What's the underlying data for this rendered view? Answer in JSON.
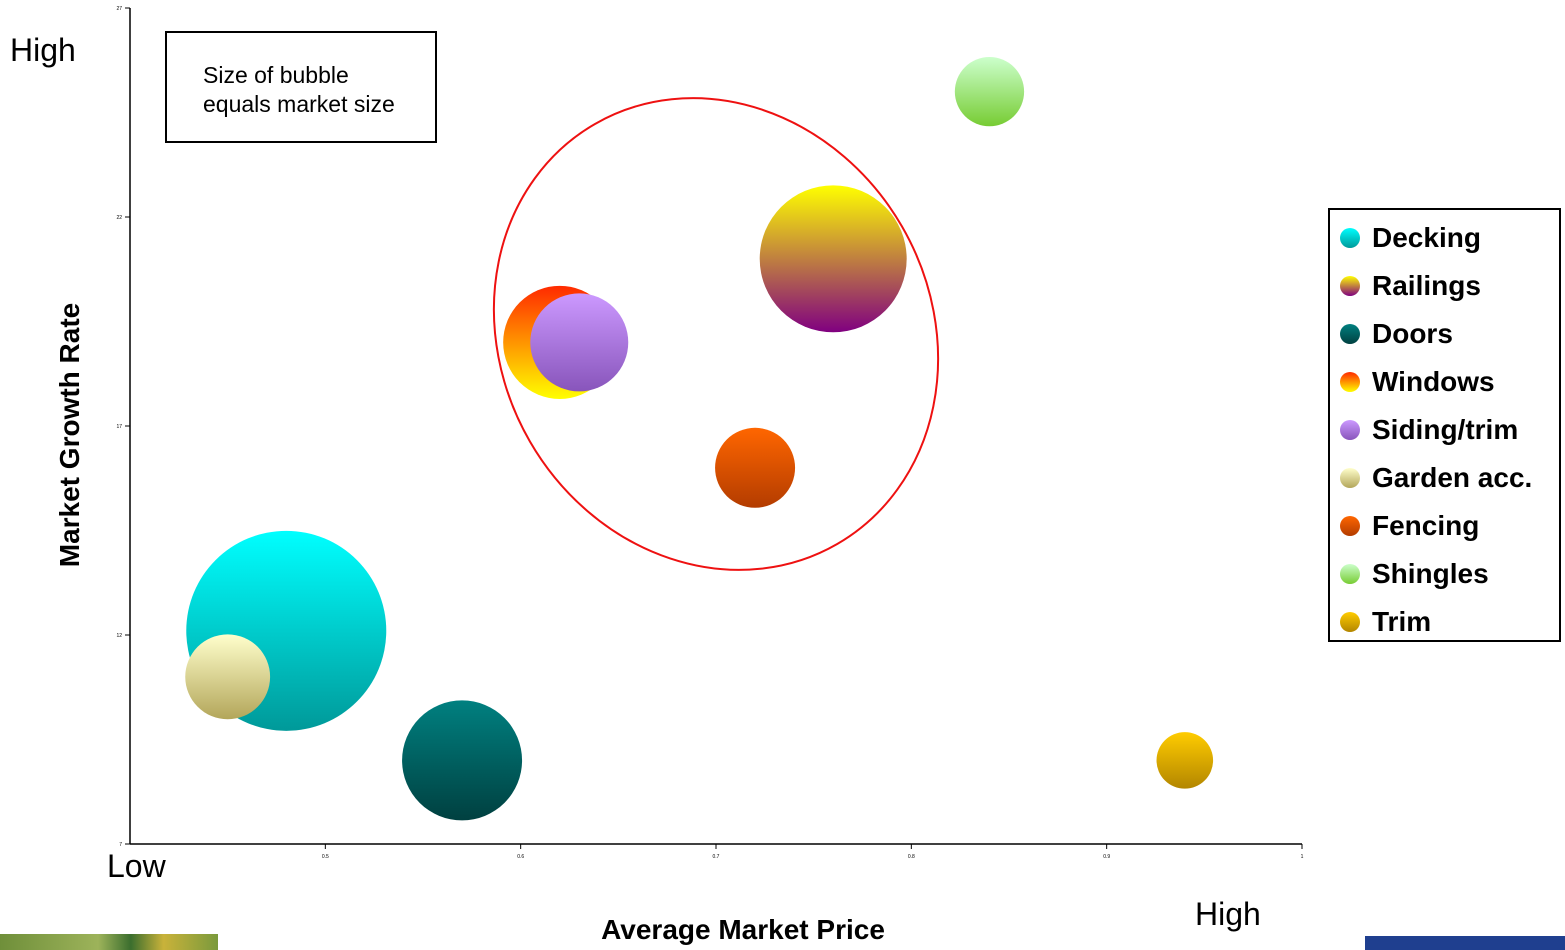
{
  "chart_data": {
    "type": "bubble",
    "xlabel": "Average Market Price",
    "ylabel": "Market Growth Rate",
    "xlim": [
      0.4,
      1.0
    ],
    "ylim": [
      7,
      27
    ],
    "y_ticks": [
      7,
      12,
      17,
      22,
      27
    ],
    "x_ticks": [
      0.5,
      0.6,
      0.7,
      0.8,
      0.9,
      1
    ],
    "legend_placement": "right",
    "corner_labels": {
      "top_left": "High",
      "bottom_left": "Low",
      "bottom_right": "High"
    },
    "note": [
      "Size of bubble",
      "equals market size"
    ],
    "series": [
      {
        "name": "Decking",
        "x": 0.48,
        "y": 12.1,
        "size": 100,
        "color_top": "#00ffff",
        "color_bottom": "#009999"
      },
      {
        "name": "Railings",
        "x": 0.76,
        "y": 21.0,
        "size": 54,
        "color_top": "#ffff00",
        "color_bottom": "#800080"
      },
      {
        "name": "Doors",
        "x": 0.57,
        "y": 9.0,
        "size": 36,
        "color_top": "#008080",
        "color_bottom": "#004040"
      },
      {
        "name": "Windows",
        "x": 0.62,
        "y": 19.0,
        "size": 32,
        "color_top": "#ff2a00",
        "color_bottom": "#ffff00"
      },
      {
        "name": "Siding/trim",
        "x": 0.63,
        "y": 19.0,
        "size": 24,
        "color_top": "#cc99ff",
        "color_bottom": "#8855bb"
      },
      {
        "name": "Garden acc.",
        "x": 0.45,
        "y": 11.0,
        "size": 18,
        "color_top": "#ffffcc",
        "color_bottom": "#b3a65a"
      },
      {
        "name": "Fencing",
        "x": 0.72,
        "y": 16.0,
        "size": 16,
        "color_top": "#ff6600",
        "color_bottom": "#b33c00"
      },
      {
        "name": "Shingles",
        "x": 0.84,
        "y": 25.0,
        "size": 12,
        "color_top": "#ccffcc",
        "color_bottom": "#77cc33"
      },
      {
        "name": "Trim",
        "x": 0.94,
        "y": 9.0,
        "size": 8,
        "color_top": "#ffcc00",
        "color_bottom": "#b38600"
      }
    ],
    "annotations": [
      {
        "type": "ellipse",
        "color": "#ee1111",
        "cx": 0.7,
        "cy": 19.2,
        "rx": 0.11,
        "ry": 5.8,
        "rotation_deg": -30
      }
    ]
  }
}
